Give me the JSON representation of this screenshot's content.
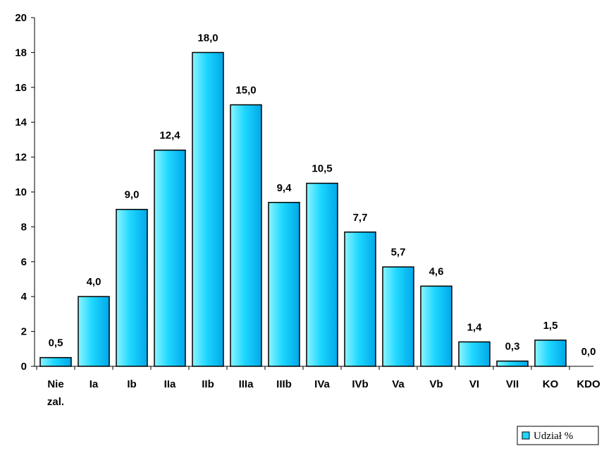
{
  "chart_data": {
    "type": "bar",
    "categories": [
      [
        "Nie",
        "zal."
      ],
      [
        "Ia"
      ],
      [
        "Ib"
      ],
      [
        "IIa"
      ],
      [
        "IIb"
      ],
      [
        "IIIa"
      ],
      [
        "IIIb"
      ],
      [
        "IVa"
      ],
      [
        "IVb"
      ],
      [
        "Va"
      ],
      [
        "Vb"
      ],
      [
        "VI"
      ],
      [
        "VII"
      ],
      [
        "KO"
      ],
      [
        "KDO"
      ]
    ],
    "series": [
      {
        "name": "Udział %",
        "values": [
          0.5,
          4.0,
          9.0,
          12.4,
          18.0,
          15.0,
          9.4,
          10.5,
          7.7,
          5.7,
          4.6,
          1.4,
          0.3,
          1.5,
          0.0
        ],
        "labels": [
          "0,5",
          "4,0",
          "9,0",
          "12,4",
          "18,0",
          "15,0",
          "9,4",
          "10,5",
          "7,7",
          "5,7",
          "4,6",
          "1,4",
          "0,3",
          "1,5",
          "0,0"
        ]
      }
    ],
    "yticks": [
      0,
      2,
      4,
      6,
      8,
      10,
      12,
      14,
      16,
      18,
      20
    ],
    "ylim": [
      0,
      20
    ],
    "grid": false,
    "legend_position": "bottom-right",
    "colors": {
      "bar_light": "#8CF4FF",
      "bar_mid": "#1ED7FF",
      "bar_dark": "#00A8E8",
      "bar_stroke": "#000000"
    }
  }
}
